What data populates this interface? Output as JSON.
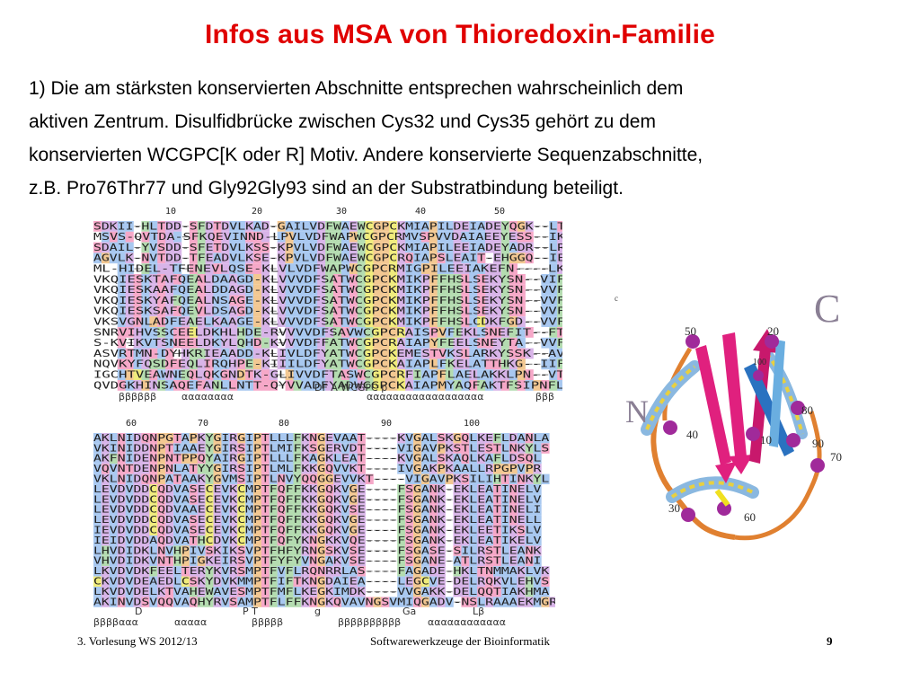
{
  "slide": {
    "title": "Infos aus MSA von Thioredoxin-Familie",
    "body_lines": [
      "1) Die am stärksten konservierten Abschnitte entsprechen wahrscheinlich dem",
      "aktiven Zentrum. Disulfidbrücke zwischen Cys32 und Cys35 gehört zu dem",
      "konservierten WCGPC[K oder R] Motiv. Andere konservierte Sequenzabschnitte,",
      "z.B. Pro76Thr77 und Gly92Gly93 sind an der Substratbindung beteiligt."
    ]
  },
  "alignment": {
    "top": {
      "numbers": [
        "10",
        "20",
        "30",
        "40",
        "50"
      ],
      "rows": [
        "SDKII-HLTDD-SFDTDVLKAD-GAILVDFWAEWCGPCKMIAPILDEIADEYQGK--LTV",
        " MSVS-QVTDA-SFKQEVINND-LPVLVDFWAPWCGPCRMVSPVVDAIAEEYESS--IKV",
        "SDAIL-YVSDD-SFETDVLKSS-KPVLVDFWAEWCGPCKMIAPILEEIADEYADR--LRV",
        "AGVLK-NVTDD-TFEADVLKSE-KPVLVDFWAEWCGPCRQIAPSLEAIT-EHGGQ--IEI",
        "   ML-HIDEL-TFENEVLQSE-KLVLVDFWAPWCGPCRMIGPILEEIAKEFN----LKV",
        "   VKQIESKTAFQEALDAAGD-KLVVVDFSATWCGPCKMIKPFFHSLSEKYSN--VIF",
        "   VKQIESKAAFQEALDDAGD-KLVVVDFSATWCGPCKMIKPFFHSLSEKYSN--VVF",
        "   VKQIESKYAFQEALNSAGE-KLVVVDFSATWCGPCKMIKPFFHSLSEKYSN--VVF",
        "   VKQIESKSAFQEVLDSAGD-KLVVVDFSATWCGPCKMIKPFFHSLSEKYSN--VVF",
        "   VKSVGNLADFEAELKAAGE-KLVVVDFSATWCGPCKMIKPFFHSLCDKFGD--VVF",
        "   SNRVIHVSSCEELDKHLHDE-RVVVVDFSAVWCGPCRAISPVFEKLSNEFIT--FTF",
        "   S-KVIKVTSNEELDKYLQHD-KVVVDFFATWCGPCRAIAPYFEELSNEYTA--VVF",
        "   ASVRTMN-DYHKRIEAADD-KLIVLDFYATWCGPCKEMESTVKSLARKYSSK--AVV",
        "   NQVKYFQSDFEQLIRQHPE-KIIILDFYATWCGPCKAIAPLFKELATTHKG--IIF",
        "   IGCHTVEAWNEQLQKGNDTK-GLIVVDFTASWCGPCRFIAPFLAELAKKLPN--VTF",
        "   QVDGKHINSAQEFANLLNTT-QYVVADFYADWCGPCKAIAPMYAQFAKTFSIPNFLAF"
      ],
      "annotations": [
        "ββββββ",
        "αααααααα",
        "DF  A  WCGPC      p",
        "αααααααααααααααααα",
        "βββ"
      ]
    },
    "bottom": {
      "numbers": [
        "60",
        "70",
        "80",
        "90",
        "100"
      ],
      "rows": [
        "AKLNIDQNPGTAPKYGIRGIPTLLLFKNGEVAAT----KVGALSKGQLKEFLDANLA",
        "VKINIDDNPTIAAEYGIRSIPTLMIFKSGERVDT----VIGAVPKSTLESTLNKYLS",
        "AKFNIDENPNTPPQYAIRGIPTLLLFKAGKLEAT----KVGALSKAQLKAFLDSQL",
        "VQVNTDENPNLATYYGIRSIPTLMLFKKGQVVKT----IVGAKPKAALLRPGPVPR",
        "VKLNIDQNPATAAKYGVMSIPTLNVYQQGGEVVKT----VIGAVPKSILIHTINKYL",
        "LEVDVDDCQDVASECEVKCMPTFQFFKKGQKVGE----FSGANK-EKLEATINELV",
        "LEVDVDDCQDVASECEVKCMPTFQFFKKGQKVGE----FSGANK-EKLEATINELV",
        "LEVDVDDCQDVAAECEVKCMPTFQFFKKGQKVSE----FSGANK-EKLEATINELI",
        "LEVDVDDCQDVASECEVKCMPTFQFFKKGQKVGE----FSGANK-EKLEATINELL",
        "IEVDVDDCQDVASECEVKCMPTFQFFKKGQKVGE----FSGANK-EKLEETIKSLV",
        "IEIDVDDAQDVATHCDVKCMPTFQFYKNGKKVQE----FSGANK-EKLEATIKELV",
        "LHVDIDKLNVHPIVSKIKSVPTFHFYRNGSKVSE----FSGASE-SILRSTLEANK",
        "VHVDIDKVNTHPIGKEIRSVPTFYFYVNGAKVSE----FSGANE-ATLRSTLEANI",
        "LKVDVDKFEELTERYKVRSMPTFVFLRQNRRLAS----FAGADE-HKLTNMMAKLVK",
        "CKVDVDEAEDLCSKYDVKMMPTFIFTKNGDAIEA----LEGCVE-DELRQKVLEHVS",
        "LKVDVDELKTVAHEWAVESMPTFMFLKEGKIMDK----VVGAKK-DELQQTIAKHMA",
        "AKINVDSVQQVAQHYRVSAMPTFLFFKNGKQVAVNGSVMIQGADV-NSLRAAAEKMGR"
      ],
      "annotations": [
        "ββββααα",
        "ααααα",
        "βββββ",
        "ββββββββββ",
        "αααααααααααα",
        "D",
        "P   T",
        "g",
        "Ga",
        "Lβ"
      ]
    },
    "colors": {
      "hydrophobic": "#a8c8f0",
      "polar": "#f6a8c8",
      "glycine": "#f3c892",
      "aromatic": "#b4dcb0",
      "charged": "#d8b4e8",
      "cysteine": "#f0ec7c"
    }
  },
  "structure": {
    "labels": [
      "C",
      "N",
      "50",
      "20",
      "100",
      "80",
      "40",
      "10",
      "90",
      "70",
      "30",
      "60",
      "c"
    ],
    "colors": {
      "strand": "#e0207e",
      "helix": "#8ab8e0",
      "coil": "#e08030",
      "sphere": "#a02a9a"
    }
  },
  "footer": {
    "left": "3. Vorlesung WS 2012/13",
    "center": "Softwarewerkzeuge der Bioinformatik",
    "page": "9"
  }
}
